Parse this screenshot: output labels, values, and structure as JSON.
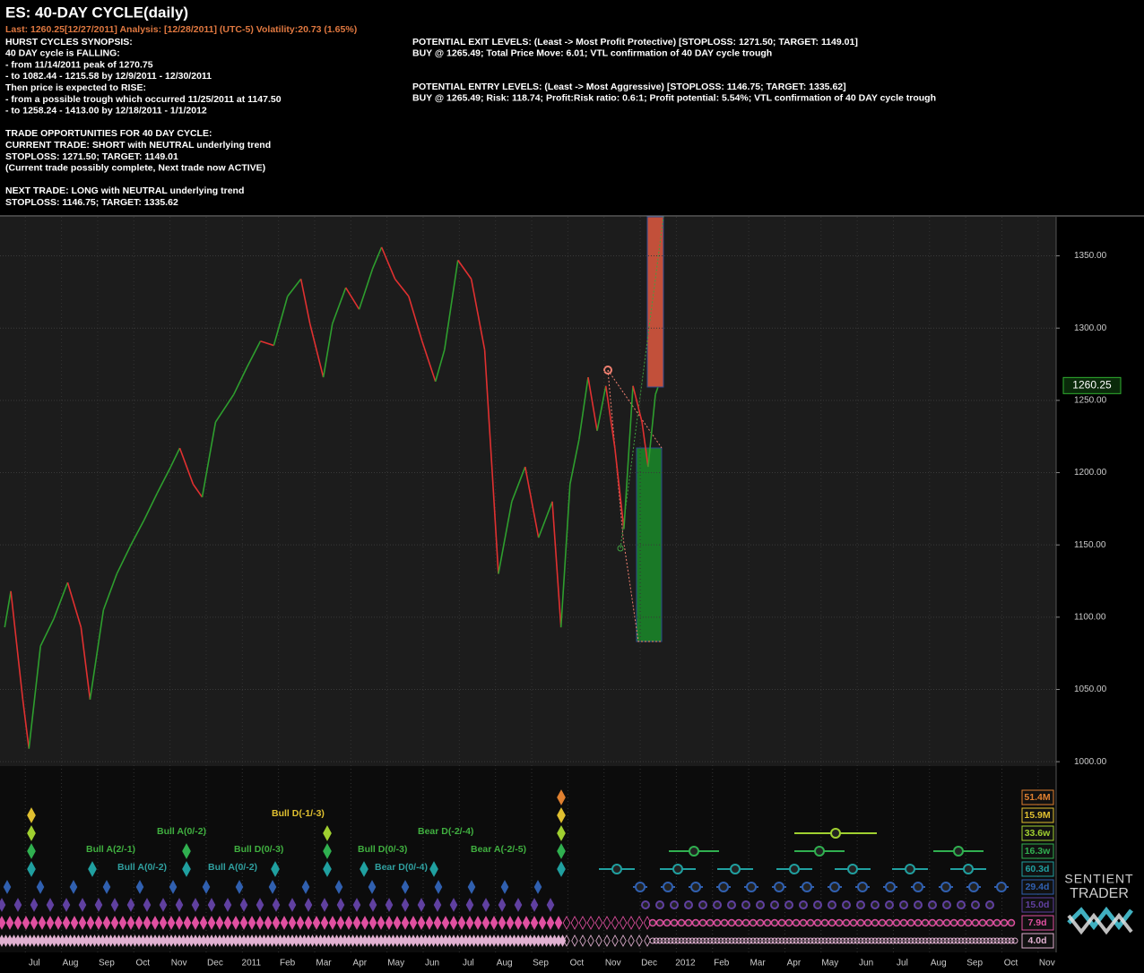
{
  "header": {
    "title": "ES: 40-DAY CYCLE(daily)",
    "status": "Last: 1260.25[12/27/2011]  Analysis: [12/28/2011] (UTC-5)  Volatility:20.73 (1.65%)",
    "synopsis": [
      [
        "HURST CYCLES SYNOPSIS:",
        "40 DAY cycle is FALLING:",
        "- from 11/14/2011 peak of 1270.75",
        "- to 1082.44 - 1215.58 by 12/9/2011 - 12/30/2011",
        "Then price is expected to RISE:",
        "- from a possible trough which occurred 11/25/2011 at 1147.50",
        "- to 1258.24 - 1413.00 by 12/18/2011 - 1/1/2012"
      ],
      [
        "TRADE OPPORTUNITIES FOR 40 DAY CYCLE:",
        "CURRENT TRADE: SHORT with NEUTRAL underlying trend",
        "STOPLOSS: 1271.50; TARGET: 1149.01",
        "(Current trade possibly complete, Next trade now ACTIVE)"
      ],
      [
        "NEXT TRADE: LONG with NEUTRAL underlying trend",
        "STOPLOSS: 1146.75; TARGET: 1335.62"
      ]
    ],
    "levels": [
      [
        "POTENTIAL EXIT LEVELS: (Least -> Most Profit Protective) [STOPLOSS: 1271.50; TARGET: 1149.01]",
        "BUY @ 1265.49; Total Price Move: 6.01; VTL confirmation of 40 DAY cycle trough"
      ],
      [
        "POTENTIAL ENTRY LEVELS: (Least -> Most Aggressive) [STOPLOSS: 1146.75; TARGET: 1335.62]",
        "BUY @ 1265.49; Risk: 118.74; Profit:Risk ratio: 0.6:1; Profit potential: 5.54%; VTL confirmation of 40 DAY cycle trough"
      ]
    ]
  },
  "chart_data": {
    "type": "line",
    "x": [
      -0.57,
      -0.4,
      -0.07,
      0.1,
      0.42,
      0.79,
      1.17,
      1.54,
      1.79,
      2.16,
      2.53,
      2.9,
      3.28,
      3.65,
      4.02,
      4.27,
      4.64,
      4.89,
      5.26,
      5.76,
      6.13,
      6.5,
      6.87,
      7.25,
      7.62,
      7.87,
      8.24,
      8.49,
      8.86,
      9.23,
      9.6,
      9.85,
      10.22,
      10.6,
      10.97,
      11.34,
      11.59,
      11.96,
      12.33,
      12.7,
      12.9,
      13.08,
      13.45,
      13.82,
      14.19,
      14.57,
      14.81,
      15.06,
      15.31,
      15.56,
      15.81,
      16.05,
      16.3,
      16.55,
      16.8,
      17.05,
      17.22,
      17.42,
      17.49
    ],
    "values": [
      1093,
      1118,
      1043,
      1009,
      1080,
      1099,
      1124,
      1093,
      1043,
      1105,
      1130,
      1149,
      1167,
      1186,
      1204,
      1217,
      1192,
      1183,
      1235,
      1254,
      1273,
      1291,
      1288,
      1322,
      1334,
      1303,
      1266,
      1303,
      1328,
      1313,
      1341,
      1356,
      1334,
      1322,
      1291,
      1263,
      1285,
      1347,
      1334,
      1285,
      1204,
      1130,
      1180,
      1204,
      1155,
      1180,
      1093,
      1192,
      1223,
      1266,
      1229,
      1260,
      1217,
      1161,
      1260,
      1235,
      1204,
      1254,
      1259
    ],
    "up_color": "#2e9e2e",
    "down_color": "#e03030",
    "xlim": [
      -0.7,
      28.5
    ],
    "xticks": [
      {
        "value": 0,
        "label": "Jul"
      },
      {
        "value": 1,
        "label": "Aug"
      },
      {
        "value": 2,
        "label": "Sep"
      },
      {
        "value": 3,
        "label": "Oct"
      },
      {
        "value": 4,
        "label": "Nov"
      },
      {
        "value": 5,
        "label": "Dec"
      },
      {
        "value": 6,
        "label": "2011"
      },
      {
        "value": 7,
        "label": "Feb"
      },
      {
        "value": 8,
        "label": "Mar"
      },
      {
        "value": 9,
        "label": "Apr"
      },
      {
        "value": 10,
        "label": "May"
      },
      {
        "value": 11,
        "label": "Jun"
      },
      {
        "value": 12,
        "label": "Jul"
      },
      {
        "value": 13,
        "label": "Aug"
      },
      {
        "value": 14,
        "label": "Sep"
      },
      {
        "value": 15,
        "label": "Oct"
      },
      {
        "value": 16,
        "label": "Nov"
      },
      {
        "value": 17,
        "label": "Dec"
      },
      {
        "value": 18,
        "label": "2012"
      },
      {
        "value": 19,
        "label": "Feb"
      },
      {
        "value": 20,
        "label": "Mar"
      },
      {
        "value": 21,
        "label": "Apr"
      },
      {
        "value": 22,
        "label": "May"
      },
      {
        "value": 23,
        "label": "Jun"
      },
      {
        "value": 24,
        "label": "Jul"
      },
      {
        "value": 25,
        "label": "Aug"
      },
      {
        "value": 26,
        "label": "Sep"
      },
      {
        "value": 27,
        "label": "Oct"
      },
      {
        "value": 28,
        "label": "Nov"
      }
    ],
    "ylim": [
      997,
      1377
    ],
    "yticks": [
      {
        "value": 1000,
        "label": "1000.00"
      },
      {
        "value": 1050,
        "label": "1050.00"
      },
      {
        "value": 1100,
        "label": "1100.00"
      },
      {
        "value": 1150,
        "label": "1150.00"
      },
      {
        "value": 1200,
        "label": "1200.00"
      },
      {
        "value": 1250,
        "label": "1250.00"
      },
      {
        "value": 1300,
        "label": "1300.00"
      },
      {
        "value": 1350,
        "label": "1350.00"
      }
    ],
    "last_price": {
      "value": 1260.25,
      "label": "1260.25"
    },
    "grid": true
  },
  "signals": [
    {
      "text": "Bull A(2/-1)",
      "color": "#40b040"
    },
    {
      "text": "Bull A(0/-2)",
      "color": "#30a0a0"
    },
    {
      "text": "Bull A(0/-2)",
      "color": "#40b040"
    },
    {
      "text": "Bull A(0/-2)",
      "color": "#30a0a0"
    },
    {
      "text": "Bull D(0/-3)",
      "color": "#40b040"
    },
    {
      "text": "Bull D(-1/-3)",
      "color": "#e0c030"
    },
    {
      "text": "Bull D(0/-3)",
      "color": "#40b040"
    },
    {
      "text": "Bear D(0/-4)",
      "color": "#30a0a0"
    },
    {
      "text": "Bear D(-2/-4)",
      "color": "#40b040"
    },
    {
      "text": "Bear A(-2/-5)",
      "color": "#40b040"
    }
  ],
  "cycles": [
    {
      "label": "51.4M",
      "color": "#e08030"
    },
    {
      "label": "15.9M",
      "color": "#e0c030"
    },
    {
      "label": "33.6w",
      "color": "#a0d030"
    },
    {
      "label": "16.3w",
      "color": "#30b050"
    },
    {
      "label": "60.3d",
      "color": "#20a0a0"
    },
    {
      "label": "29.4d",
      "color": "#3060b0"
    },
    {
      "label": "15.0d",
      "color": "#6040a0"
    },
    {
      "label": "7.9d",
      "color": "#e050a0"
    },
    {
      "label": "4.0d",
      "color": "#e0b0d0"
    }
  ],
  "logo": [
    "SENTIENT",
    "TRADER"
  ]
}
